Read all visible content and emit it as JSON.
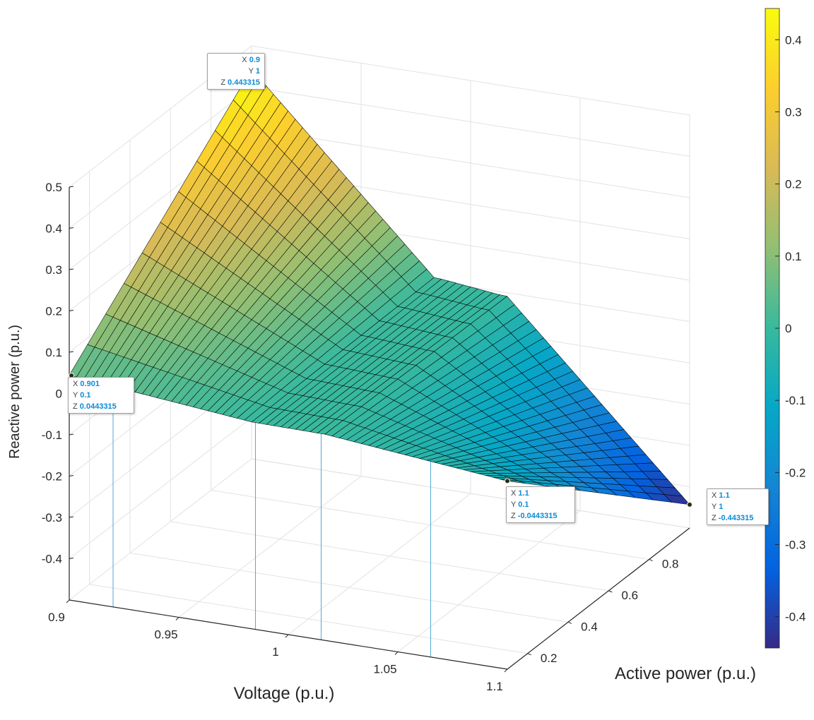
{
  "chart_data": {
    "type": "surface",
    "xlabel": "Voltage (p.u.)",
    "ylabel": "Active power (p.u.)",
    "zlabel": "Reactive power (p.u.)",
    "xlim": [
      0.9,
      1.1
    ],
    "ylim": [
      0.1,
      1.0
    ],
    "zlim": [
      -0.5,
      0.5
    ],
    "x_ticks": [
      "0.9",
      "0.95",
      "1",
      "1.05",
      "1.1"
    ],
    "y_ticks": [
      "0.2",
      "0.4",
      "0.6",
      "0.8"
    ],
    "z_ticks": [
      "0.5",
      "0.4",
      "0.3",
      "0.2",
      "0.1",
      "0",
      "-0.1",
      "-0.2",
      "-0.3",
      "-0.4"
    ],
    "colorbar": {
      "colormap": "parula",
      "range": [
        -0.443315,
        0.443315
      ],
      "ticks": [
        "0.4",
        "0.3",
        "0.2",
        "0.1",
        "0",
        "-0.1",
        "-0.2",
        "-0.3",
        "-0.4"
      ]
    },
    "grid": true,
    "surface_model": {
      "description_free": true,
      "deadband_voltage": [
        0.985,
        1.015
      ],
      "z_at": [
        {
          "x": 0.9,
          "y": 1.0,
          "z": 0.443315
        },
        {
          "x": 0.901,
          "y": 0.1,
          "z": 0.0443315
        },
        {
          "x": 1.1,
          "y": 0.1,
          "z": -0.0443315
        },
        {
          "x": 1.1,
          "y": 1.0,
          "z": -0.443315
        }
      ]
    },
    "datatips": [
      {
        "X": "0.901",
        "Y": "0.1",
        "Z": "0.0443315"
      },
      {
        "X": "0.9",
        "Y": "1",
        "Z": "0.443315"
      },
      {
        "X": "1.1",
        "Y": "0.1",
        "Z": "-0.0443315"
      },
      {
        "X": "1.1",
        "Y": "1",
        "Z": "-0.443315"
      }
    ],
    "drop_lines_x": [
      0.92,
      0.985,
      1.015,
      1.065
    ]
  }
}
